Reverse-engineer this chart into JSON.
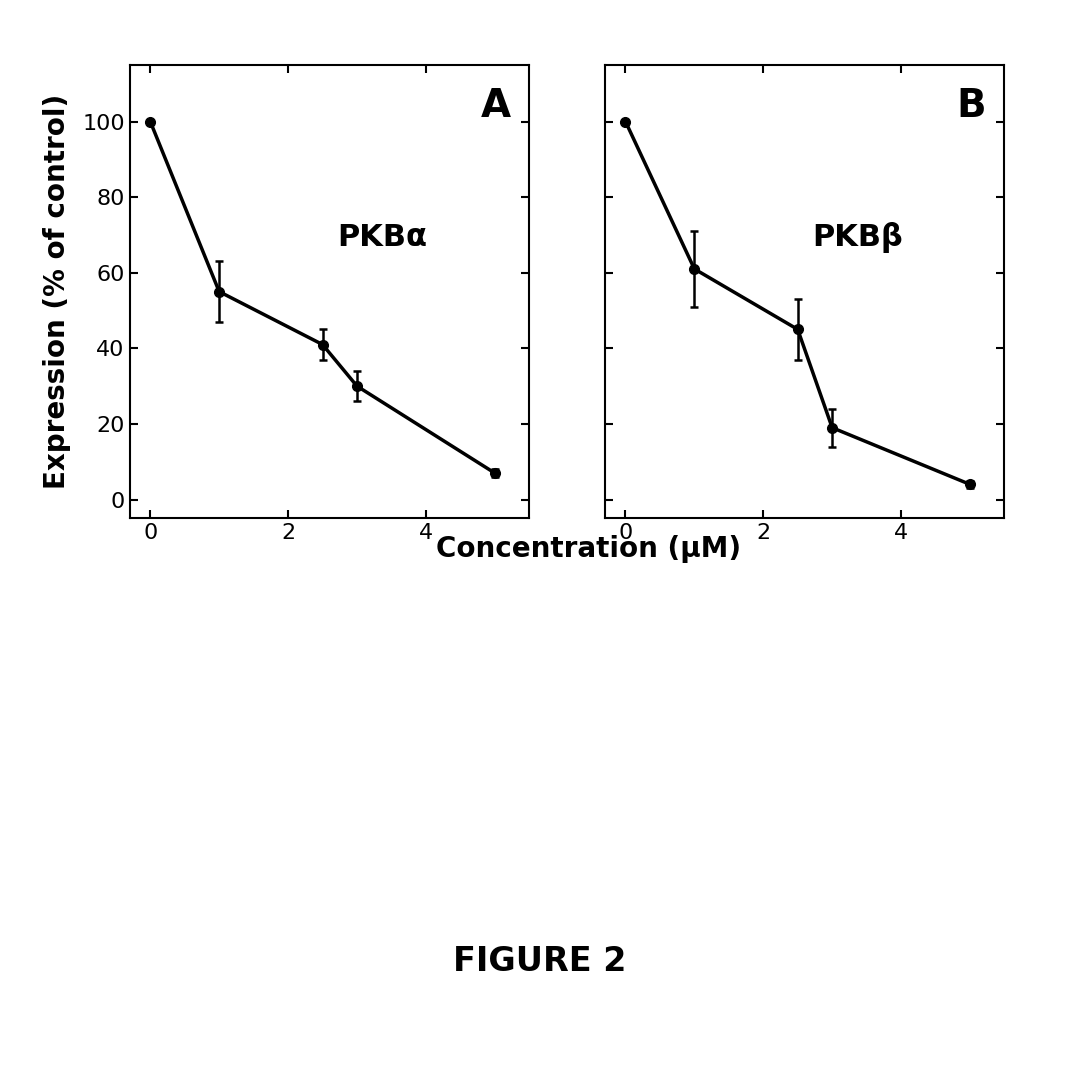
{
  "panel_A": {
    "label": "A",
    "title": "PKBα",
    "x_data": [
      0,
      1,
      2.5,
      3,
      5
    ],
    "y_data": [
      100,
      55,
      41,
      30,
      7
    ],
    "y_err": [
      0,
      8,
      4,
      4,
      1
    ],
    "xlim": [
      -0.3,
      5.5
    ],
    "ylim": [
      -5,
      115
    ],
    "xticks": [
      0,
      2,
      4
    ],
    "yticks": [
      0,
      20,
      40,
      60,
      80,
      100
    ]
  },
  "panel_B": {
    "label": "B",
    "title": "PKBβ",
    "x_data": [
      0,
      1,
      2.5,
      3,
      5
    ],
    "y_data": [
      100,
      61,
      45,
      19,
      4
    ],
    "y_err": [
      0,
      10,
      8,
      5,
      1
    ],
    "xlim": [
      -0.3,
      5.5
    ],
    "ylim": [
      -5,
      115
    ],
    "xticks": [
      0,
      2,
      4
    ],
    "yticks": [
      0,
      20,
      40,
      60,
      80,
      100
    ]
  },
  "ylabel": "Expression (% of control)",
  "xlabel": "Concentration (μM)",
  "figure_label": "FIGURE 2",
  "line_color": "#000000",
  "marker_color": "#000000",
  "background_color": "#ffffff",
  "tick_label_fontsize": 16,
  "axis_label_fontsize": 20,
  "panel_label_fontsize": 28,
  "title_fontsize": 22,
  "figure_label_fontsize": 24
}
